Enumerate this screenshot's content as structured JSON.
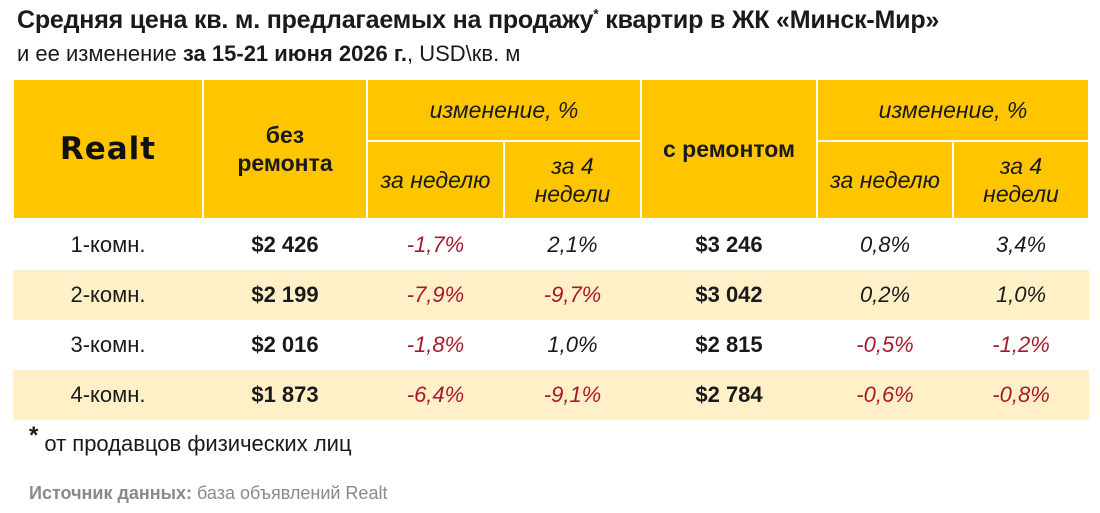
{
  "title": {
    "main": "Средняя цена кв. м. предлагаемых на продажу",
    "star": "*",
    "tail": " квартир в ЖК «Минск-Мир»"
  },
  "subtitle": {
    "prefix": "и ее изменение ",
    "period": "за 15-21 июня 2026 г.",
    "suffix": ", USD\\кв. м"
  },
  "header": {
    "logo": "Realt",
    "no_renovation": "без ремонта",
    "with_renovation": "с ремонтом",
    "change_pct": "изменение, %",
    "per_week": "за неделю",
    "per_4_weeks": "за 4 недели"
  },
  "rows": [
    {
      "rooms": "1-комн.",
      "price_plain": "$2 426",
      "plain_week": "-1,7%",
      "plain_4w": "2,1%",
      "price_reno": "$3 246",
      "reno_week": "0,8%",
      "reno_4w": "3,4%"
    },
    {
      "rooms": "2-комн.",
      "price_plain": "$2 199",
      "plain_week": "-7,9%",
      "plain_4w": "-9,7%",
      "price_reno": "$3 042",
      "reno_week": "0,2%",
      "reno_4w": "1,0%"
    },
    {
      "rooms": "3-комн.",
      "price_plain": "$2 016",
      "plain_week": "-1,8%",
      "plain_4w": "1,0%",
      "price_reno": "$2 815",
      "reno_week": "-0,5%",
      "reno_4w": "-1,2%"
    },
    {
      "rooms": "4-комн.",
      "price_plain": "$1 873",
      "plain_week": "-6,4%",
      "plain_4w": "-9,1%",
      "price_reno": "$2 784",
      "reno_week": "-0,6%",
      "reno_4w": "-0,8%"
    }
  ],
  "footnote": {
    "star": "*",
    "text": "от продавцов физических лиц"
  },
  "source": {
    "label": "Источник данных:",
    "text": " база объявлений Realt"
  },
  "colors": {
    "header_bg": "#ffc600",
    "alt_row_bg": "#fff0c8",
    "negative": "#a8192e",
    "text": "#1a1a1a"
  },
  "chart_data": {
    "type": "table",
    "columns": [
      "",
      "без ремонта",
      "изменение, % за неделю",
      "изменение, % за 4 недели",
      "с ремонтом",
      "изменение, % за неделю",
      "изменение, % за 4 недели"
    ],
    "categories": [
      "1-комн.",
      "2-комн.",
      "3-комн.",
      "4-комн."
    ],
    "series": [
      {
        "name": "без ремонта",
        "values": [
          2426,
          2199,
          2016,
          1873
        ]
      },
      {
        "name": "без ремонта — за неделю",
        "values": [
          -1.7,
          -7.9,
          -1.8,
          -6.4
        ]
      },
      {
        "name": "без ремонта — за 4 недели",
        "values": [
          2.1,
          -9.7,
          1.0,
          -9.1
        ]
      },
      {
        "name": "с ремонтом",
        "values": [
          3246,
          3042,
          2815,
          2784
        ]
      },
      {
        "name": "с ремонтом — за неделю",
        "values": [
          0.8,
          0.2,
          -0.5,
          -0.6
        ]
      },
      {
        "name": "с ремонтом — за 4 недели",
        "values": [
          3.4,
          1.0,
          -1.2,
          -0.8
        ]
      }
    ]
  }
}
